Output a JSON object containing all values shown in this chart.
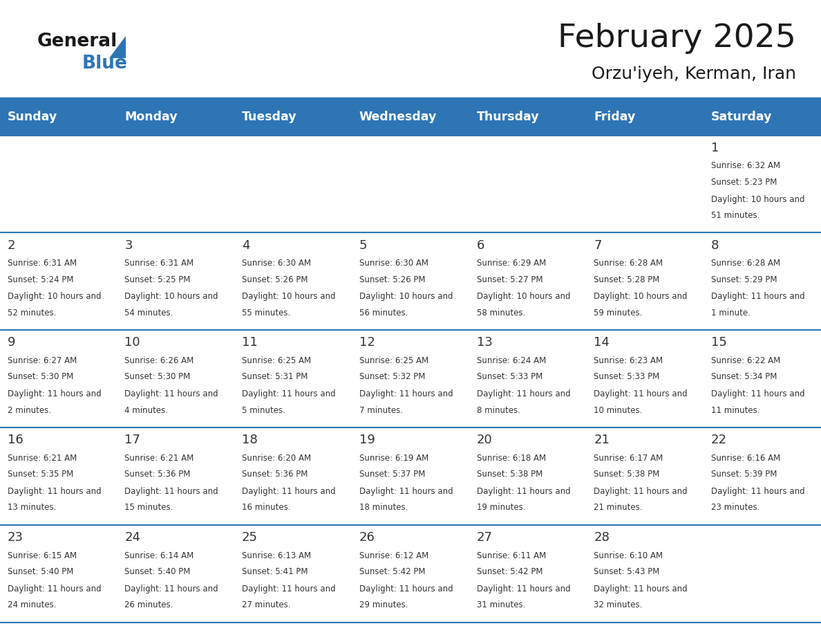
{
  "title": "February 2025",
  "subtitle": "Orzu'iyeh, Kerman, Iran",
  "days_of_week": [
    "Sunday",
    "Monday",
    "Tuesday",
    "Wednesday",
    "Thursday",
    "Friday",
    "Saturday"
  ],
  "header_bg": "#2E75B6",
  "header_text": "#FFFFFF",
  "row_bg_light": "#FFFFFF",
  "cell_border": "#2E75B6",
  "day_number_color": "#333333",
  "text_color": "#333333",
  "calendar_data": [
    {
      "day": 1,
      "col": 6,
      "row": 0,
      "sunrise": "6:32 AM",
      "sunset": "5:23 PM",
      "daylight": "10 hours and 51 minutes."
    },
    {
      "day": 2,
      "col": 0,
      "row": 1,
      "sunrise": "6:31 AM",
      "sunset": "5:24 PM",
      "daylight": "10 hours and 52 minutes."
    },
    {
      "day": 3,
      "col": 1,
      "row": 1,
      "sunrise": "6:31 AM",
      "sunset": "5:25 PM",
      "daylight": "10 hours and 54 minutes."
    },
    {
      "day": 4,
      "col": 2,
      "row": 1,
      "sunrise": "6:30 AM",
      "sunset": "5:26 PM",
      "daylight": "10 hours and 55 minutes."
    },
    {
      "day": 5,
      "col": 3,
      "row": 1,
      "sunrise": "6:30 AM",
      "sunset": "5:26 PM",
      "daylight": "10 hours and 56 minutes."
    },
    {
      "day": 6,
      "col": 4,
      "row": 1,
      "sunrise": "6:29 AM",
      "sunset": "5:27 PM",
      "daylight": "10 hours and 58 minutes."
    },
    {
      "day": 7,
      "col": 5,
      "row": 1,
      "sunrise": "6:28 AM",
      "sunset": "5:28 PM",
      "daylight": "10 hours and 59 minutes."
    },
    {
      "day": 8,
      "col": 6,
      "row": 1,
      "sunrise": "6:28 AM",
      "sunset": "5:29 PM",
      "daylight": "11 hours and 1 minute."
    },
    {
      "day": 9,
      "col": 0,
      "row": 2,
      "sunrise": "6:27 AM",
      "sunset": "5:30 PM",
      "daylight": "11 hours and 2 minutes."
    },
    {
      "day": 10,
      "col": 1,
      "row": 2,
      "sunrise": "6:26 AM",
      "sunset": "5:30 PM",
      "daylight": "11 hours and 4 minutes."
    },
    {
      "day": 11,
      "col": 2,
      "row": 2,
      "sunrise": "6:25 AM",
      "sunset": "5:31 PM",
      "daylight": "11 hours and 5 minutes."
    },
    {
      "day": 12,
      "col": 3,
      "row": 2,
      "sunrise": "6:25 AM",
      "sunset": "5:32 PM",
      "daylight": "11 hours and 7 minutes."
    },
    {
      "day": 13,
      "col": 4,
      "row": 2,
      "sunrise": "6:24 AM",
      "sunset": "5:33 PM",
      "daylight": "11 hours and 8 minutes."
    },
    {
      "day": 14,
      "col": 5,
      "row": 2,
      "sunrise": "6:23 AM",
      "sunset": "5:33 PM",
      "daylight": "11 hours and 10 minutes."
    },
    {
      "day": 15,
      "col": 6,
      "row": 2,
      "sunrise": "6:22 AM",
      "sunset": "5:34 PM",
      "daylight": "11 hours and 11 minutes."
    },
    {
      "day": 16,
      "col": 0,
      "row": 3,
      "sunrise": "6:21 AM",
      "sunset": "5:35 PM",
      "daylight": "11 hours and 13 minutes."
    },
    {
      "day": 17,
      "col": 1,
      "row": 3,
      "sunrise": "6:21 AM",
      "sunset": "5:36 PM",
      "daylight": "11 hours and 15 minutes."
    },
    {
      "day": 18,
      "col": 2,
      "row": 3,
      "sunrise": "6:20 AM",
      "sunset": "5:36 PM",
      "daylight": "11 hours and 16 minutes."
    },
    {
      "day": 19,
      "col": 3,
      "row": 3,
      "sunrise": "6:19 AM",
      "sunset": "5:37 PM",
      "daylight": "11 hours and 18 minutes."
    },
    {
      "day": 20,
      "col": 4,
      "row": 3,
      "sunrise": "6:18 AM",
      "sunset": "5:38 PM",
      "daylight": "11 hours and 19 minutes."
    },
    {
      "day": 21,
      "col": 5,
      "row": 3,
      "sunrise": "6:17 AM",
      "sunset": "5:38 PM",
      "daylight": "11 hours and 21 minutes."
    },
    {
      "day": 22,
      "col": 6,
      "row": 3,
      "sunrise": "6:16 AM",
      "sunset": "5:39 PM",
      "daylight": "11 hours and 23 minutes."
    },
    {
      "day": 23,
      "col": 0,
      "row": 4,
      "sunrise": "6:15 AM",
      "sunset": "5:40 PM",
      "daylight": "11 hours and 24 minutes."
    },
    {
      "day": 24,
      "col": 1,
      "row": 4,
      "sunrise": "6:14 AM",
      "sunset": "5:40 PM",
      "daylight": "11 hours and 26 minutes."
    },
    {
      "day": 25,
      "col": 2,
      "row": 4,
      "sunrise": "6:13 AM",
      "sunset": "5:41 PM",
      "daylight": "11 hours and 27 minutes."
    },
    {
      "day": 26,
      "col": 3,
      "row": 4,
      "sunrise": "6:12 AM",
      "sunset": "5:42 PM",
      "daylight": "11 hours and 29 minutes."
    },
    {
      "day": 27,
      "col": 4,
      "row": 4,
      "sunrise": "6:11 AM",
      "sunset": "5:42 PM",
      "daylight": "11 hours and 31 minutes."
    },
    {
      "day": 28,
      "col": 5,
      "row": 4,
      "sunrise": "6:10 AM",
      "sunset": "5:43 PM",
      "daylight": "11 hours and 32 minutes."
    }
  ],
  "num_rows": 5,
  "num_cols": 7,
  "logo_color_general": "#1a1a1a",
  "logo_color_blue": "#2E75B6",
  "logo_triangle_color": "#2E75B6"
}
